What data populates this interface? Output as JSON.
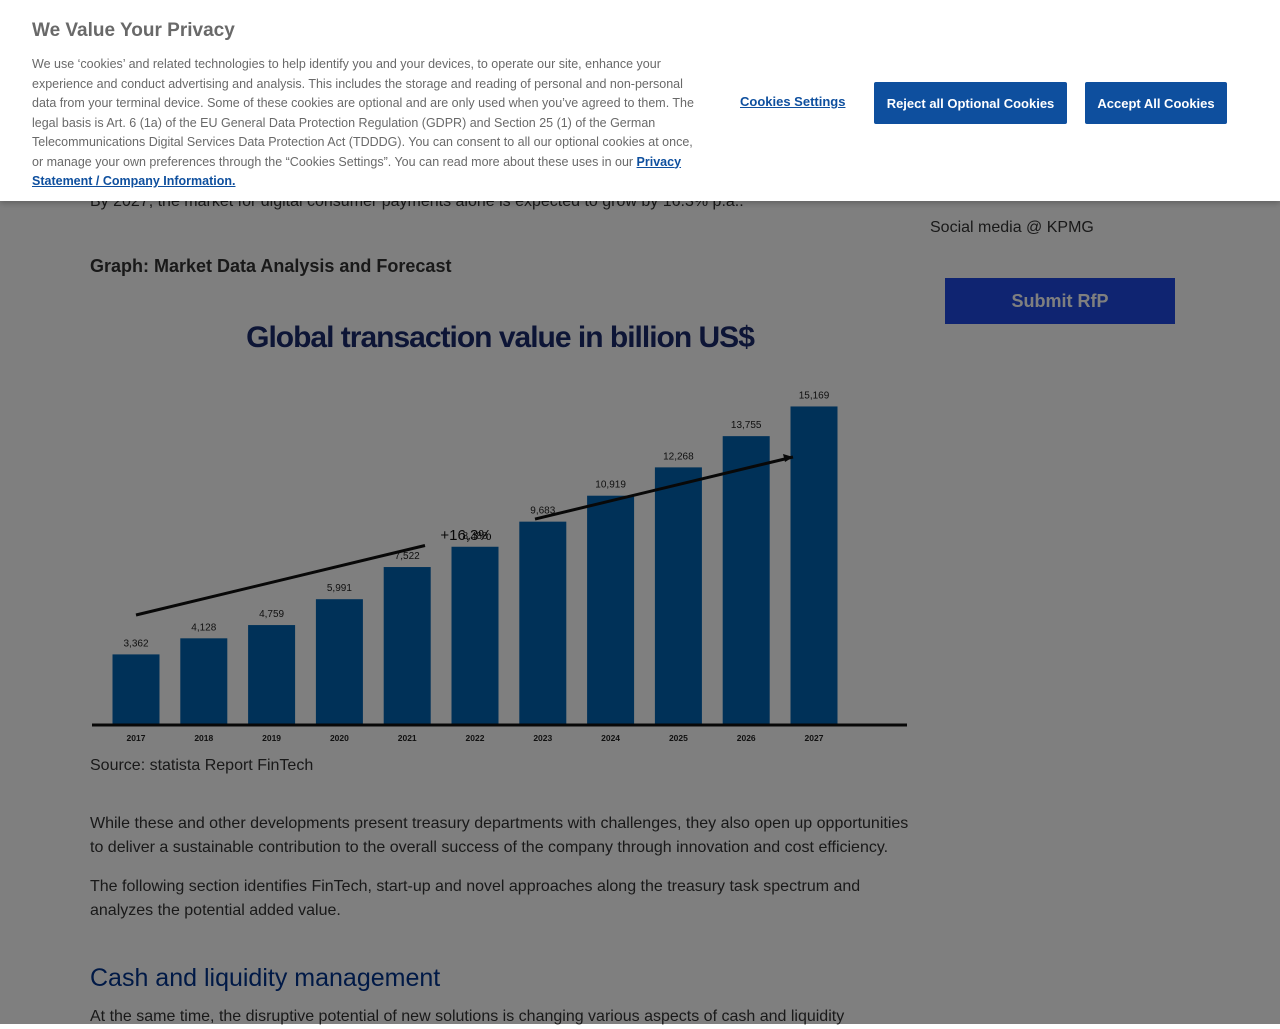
{
  "article": {
    "intro_tail": "By 2027, the market for digital consumer payments alone is expected to grow by 16.3% p.a..",
    "graph_heading": "Graph: Market Data Analysis and Forecast",
    "source_caption": "Source: statista Report FinTech",
    "para_1": "While these and other developments present treasury departments with challenges, they also open up opportunities to deliver a sustainable contribution to the overall success of the company through innovation and cost efficiency.",
    "para_2": "The following section identifies FinTech, start-up and novel approaches along the treasury task spectrum and analyzes the potential added value.",
    "section_heading": "Cash and liquidity management",
    "para_3": "At the same time, the disruptive potential of new solutions is changing various aspects of cash and liquidity"
  },
  "sidebar": {
    "social": "Social media @ KPMG",
    "submit_label": "Submit RfP"
  },
  "chart_data": {
    "type": "bar",
    "title": "Global transaction value in billion US$",
    "categories": [
      "2017",
      "2018",
      "2019",
      "2020",
      "2021",
      "2022",
      "2023",
      "2024",
      "2025",
      "2026",
      "2027"
    ],
    "values": [
      3362,
      4128,
      4759,
      5991,
      7522,
      8488,
      9683,
      10919,
      12268,
      13755,
      15169
    ],
    "value_labels": [
      "3,362",
      "4,128",
      "4,759",
      "5,991",
      "7,522",
      "8,488",
      "9,683",
      "10,919",
      "12,268",
      "13,755",
      "15,169"
    ],
    "annotation": "+16,3%",
    "bar_color": "#0063b1",
    "ylim": [
      0,
      20000
    ],
    "grid": false,
    "legend": "none"
  },
  "cookie": {
    "title": "We Value Your Privacy",
    "body": "We use ‘cookies’ and related technologies to help identify you and your devices, to operate our site, enhance your experience and conduct advertising and analysis. This includes the storage and reading of personal and non-personal data from your terminal device. Some of these cookies are optional and are only used when you’ve agreed to them. The legal basis is Art. 6 (1a) of the EU General Data Protection Regulation (GDPR) and Section 25 (1) of the German Telecommunications Digital Services Data Protection Act (TDDDG). You can consent to all our optional cookies at once, or manage your own preferences through the “Cookies Settings”. You can read more about these uses in our",
    "privacy_link": "Privacy Statement / Company Information.",
    "settings_label": "Cookies Settings",
    "reject_label": "Reject all Optional Cookies",
    "accept_label": "Accept All Cookies",
    "accent_color": "#0e4f9e"
  }
}
